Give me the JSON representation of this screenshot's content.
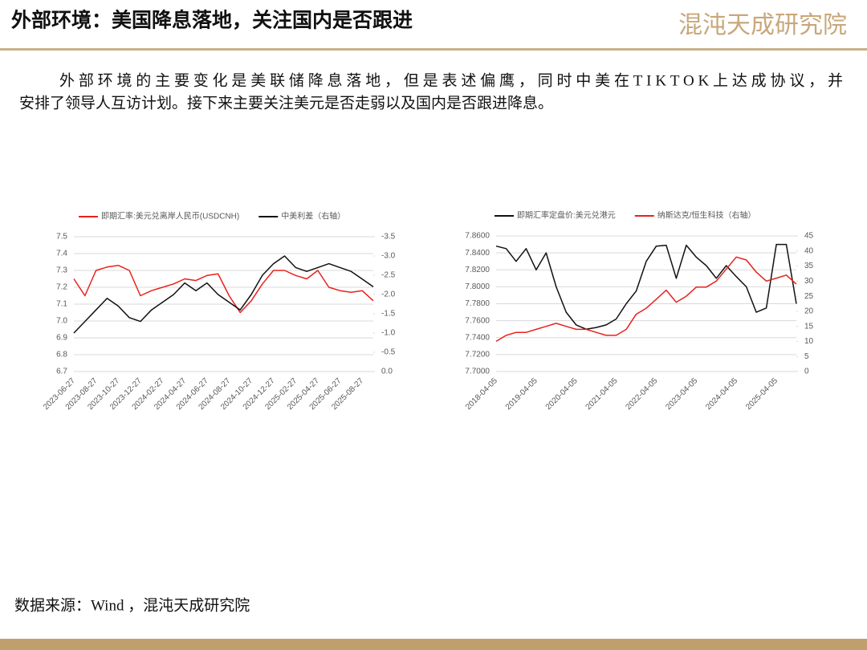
{
  "header": {
    "title": "外部环境：美国降息落地，关注国内是否跟进",
    "logo": "混沌天成研究院"
  },
  "paragraph": [
    "外部环境的主要变化是美联储降息落地，但是表述偏鹰，同时中美在TIKTOK上达成协议，并",
    "安排了领导人互访计划。接下来主要关注美元是否走弱以及国内是否跟进降息。"
  ],
  "source": "数据来源：Wind ，混沌天成研究院",
  "chart_data": [
    {
      "type": "line",
      "categories": [
        "2023-06-27",
        null,
        "2023-08-27",
        null,
        "2023-10-27",
        null,
        "2023-12-27",
        null,
        "2024-02-27",
        null,
        "2024-04-27",
        null,
        "2024-06-27",
        null,
        "2024-08-27",
        null,
        "2024-10-27",
        null,
        "2024-12-27",
        null,
        "2025-02-27",
        null,
        "2025-04-27",
        null,
        "2025-06-27",
        null,
        "2025-08-27",
        null
      ],
      "series": [
        {
          "name": "即期汇率:美元兑离岸人民币(USDCNH)",
          "color": "#e8211d",
          "axis": "y",
          "values": [
            7.25,
            7.15,
            7.3,
            7.32,
            7.33,
            7.3,
            7.15,
            7.18,
            7.2,
            7.22,
            7.25,
            7.24,
            7.27,
            7.28,
            7.15,
            7.05,
            7.12,
            7.22,
            7.3,
            7.3,
            7.27,
            7.25,
            7.3,
            7.2,
            7.18,
            7.17,
            7.18,
            7.12
          ]
        },
        {
          "name": "中美利差（右轴）",
          "color": "#111111",
          "axis": "y2",
          "values": [
            -1.0,
            -1.3,
            -1.6,
            -1.9,
            -1.7,
            -1.4,
            -1.3,
            -1.6,
            -1.8,
            -2.0,
            -2.3,
            -2.1,
            -2.3,
            -2.0,
            -1.8,
            -1.6,
            -2.0,
            -2.5,
            -2.8,
            -3.0,
            -2.7,
            -2.6,
            -2.7,
            -2.8,
            -2.7,
            -2.6,
            -2.4,
            -2.2
          ]
        }
      ],
      "ylim": [
        6.7,
        7.5
      ],
      "yticks": [
        6.7,
        6.8,
        6.9,
        {
          "value": 7,
          "label": "7.0"
        },
        7.1,
        7.2,
        7.3,
        7.4,
        7.5
      ],
      "y2lim": [
        0,
        -3.5
      ],
      "y2ticks": [
        {
          "value": 0,
          "label": "0.0"
        },
        -0.5,
        {
          "value": -1,
          "label": "-1.0"
        },
        -1.5,
        {
          "value": -2,
          "label": "-2.0"
        },
        -2.5,
        {
          "value": -3,
          "label": "-3.0"
        },
        -3.5
      ],
      "grid": true,
      "legend": "top"
    },
    {
      "type": "line",
      "categories": [
        "2018-04-05",
        null,
        null,
        null,
        "2019-04-05",
        null,
        null,
        null,
        "2020-04-05",
        null,
        null,
        null,
        "2021-04-05",
        null,
        null,
        null,
        "2022-04-05",
        null,
        null,
        null,
        "2023-04-05",
        null,
        null,
        null,
        "2024-04-05",
        null,
        null,
        null,
        "2025-04-05",
        null,
        null
      ],
      "series": [
        {
          "name": "即期汇率定盘价:美元兑港元",
          "color": "#111111",
          "axis": "y",
          "values": [
            7.848,
            7.845,
            7.83,
            7.845,
            7.82,
            7.84,
            7.8,
            7.77,
            7.755,
            7.75,
            7.752,
            7.755,
            7.762,
            7.78,
            7.795,
            7.83,
            7.848,
            7.849,
            7.81,
            7.849,
            7.835,
            7.825,
            7.81,
            7.825,
            7.812,
            7.8,
            7.77,
            7.775,
            7.85,
            7.85,
            7.78
          ]
        },
        {
          "name": "纳斯达克/恒生科技（右轴）",
          "color": "#e8211d",
          "axis": "y2",
          "values": [
            10,
            12,
            13,
            13,
            14,
            15,
            16,
            15,
            14,
            14,
            13,
            12,
            12,
            14,
            19,
            21,
            24,
            27,
            23,
            25,
            28,
            28,
            30,
            34,
            38,
            37,
            33,
            30,
            31,
            32,
            29
          ]
        }
      ],
      "ylim": [
        7.7,
        7.86
      ],
      "yticks": [
        {
          "value": 7.7,
          "label": "7.7000"
        },
        {
          "value": 7.72,
          "label": "7.7200"
        },
        {
          "value": 7.74,
          "label": "7.7400"
        },
        {
          "value": 7.76,
          "label": "7.7600"
        },
        {
          "value": 7.78,
          "label": "7.7800"
        },
        {
          "value": 7.8,
          "label": "7.8000"
        },
        {
          "value": 7.82,
          "label": "7.8200"
        },
        {
          "value": 7.84,
          "label": "7.8400"
        },
        {
          "value": 7.86,
          "label": "7.8600"
        }
      ],
      "y2lim": [
        0,
        45
      ],
      "y2ticks": [
        0,
        5,
        10,
        15,
        20,
        25,
        30,
        35,
        40,
        45
      ],
      "grid": true,
      "legend": "top"
    }
  ]
}
